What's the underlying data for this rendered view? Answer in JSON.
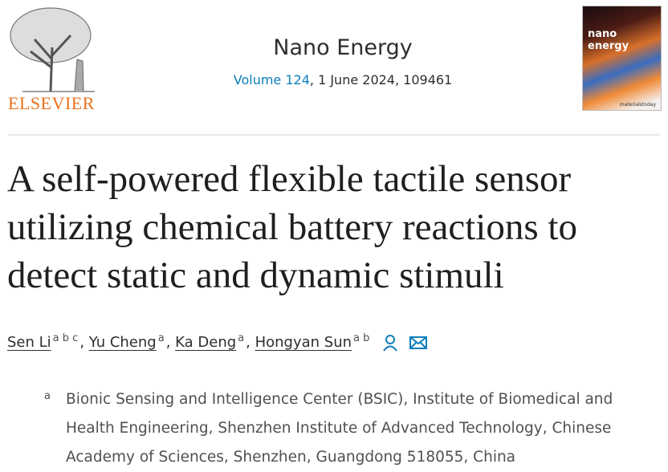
{
  "header": {
    "publisher": "ELSEVIER",
    "journal": "Nano Energy",
    "volume_link": "Volume 124",
    "volume_rest": ", 1 June 2024, 109461",
    "cover_title": "nano energy",
    "cover_brand": "materialstoday"
  },
  "article": {
    "title": "A self-powered flexible tactile sensor utilizing chemical battery reactions to detect static and dynamic stimuli"
  },
  "authors": [
    {
      "name": "Sen Li",
      "sup": "a b c"
    },
    {
      "name": "Yu Cheng",
      "sup": "a"
    },
    {
      "name": "Ka Deng",
      "sup": "a"
    },
    {
      "name": "Hongyan Sun",
      "sup": "a b"
    }
  ],
  "affiliations": [
    {
      "label": "a",
      "text": "Bionic Sensing and Intelligence Center (BSIC), Institute of Biomedical and Health Engineering, Shenzhen Institute of Advanced Technology, Chinese Academy of Sciences, Shenzhen, Guangdong 518055, China"
    }
  ],
  "colors": {
    "link": "#0c7dbb",
    "publisher": "#e9711c"
  }
}
